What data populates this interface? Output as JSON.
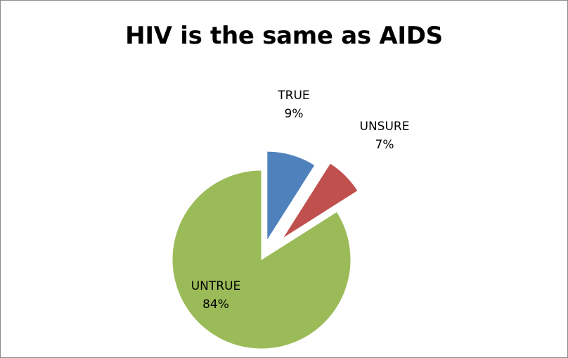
{
  "chart_data": {
    "type": "pie",
    "title": "HIV is the same as AIDS",
    "slices": [
      {
        "label": "TRUE",
        "value": 9,
        "value_label": "9%",
        "color": "#4F81BD"
      },
      {
        "label": "UNSURE",
        "value": 7,
        "value_label": "7%",
        "color": "#C0504D"
      },
      {
        "label": "UNTRUE",
        "value": 84,
        "value_label": "84%",
        "color": "#9BBB59"
      }
    ],
    "exploded": true,
    "legend": "none"
  }
}
